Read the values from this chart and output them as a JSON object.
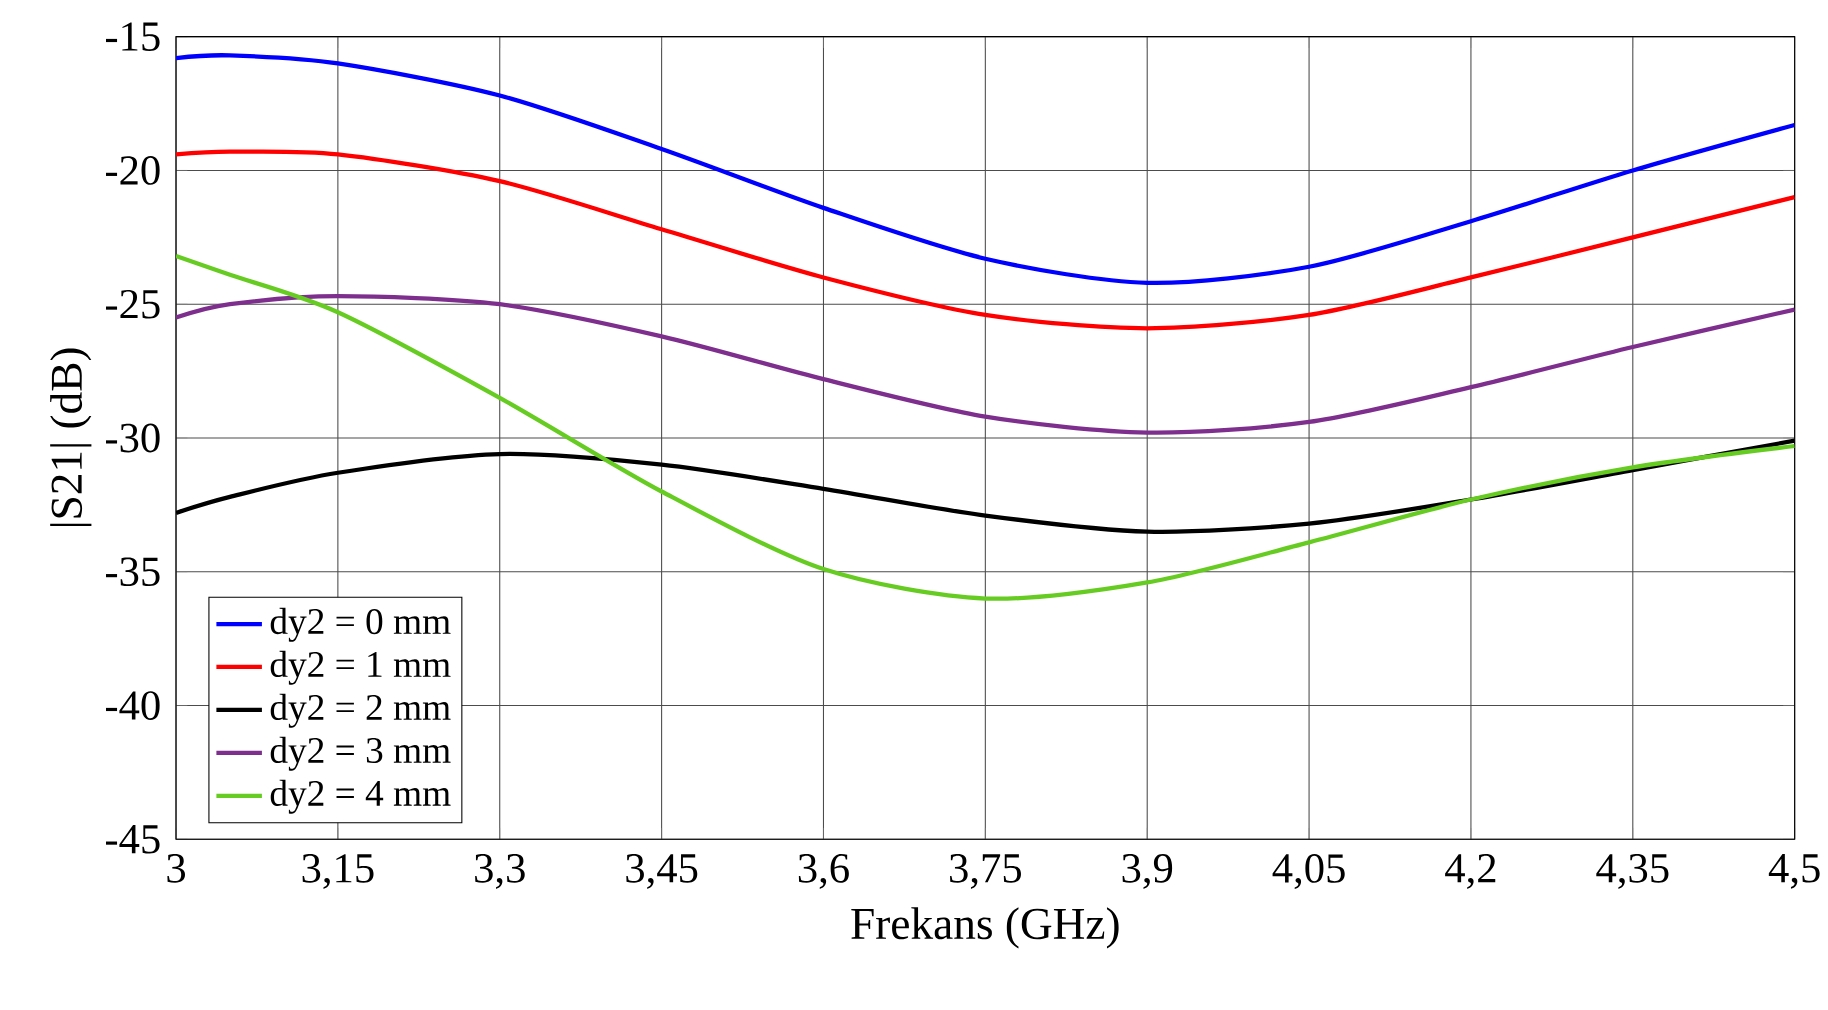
{
  "chart_data": {
    "type": "line",
    "xlabel": "Frekans (GHz)",
    "ylabel": "|S21| (dB)",
    "x": [
      3,
      3.05,
      3.15,
      3.3,
      3.45,
      3.6,
      3.75,
      3.9,
      4.05,
      4.2,
      4.35,
      4.5
    ],
    "series": [
      {
        "name": "dy2 = 0 mm",
        "color": "#0000ff",
        "values": [
          -15.8,
          -15.7,
          -16.0,
          -17.2,
          -19.2,
          -21.4,
          -23.3,
          -24.2,
          -23.6,
          -21.9,
          -20.0,
          -18.3
        ]
      },
      {
        "name": "dy2 = 1 mm",
        "color": "#ff0000",
        "values": [
          -19.4,
          -19.3,
          -19.4,
          -20.4,
          -22.2,
          -24.0,
          -25.4,
          -25.9,
          -25.4,
          -24.0,
          -22.5,
          -21.0
        ]
      },
      {
        "name": "dy2 = 2 mm",
        "color": "#000000",
        "values": [
          -32.8,
          -32.2,
          -31.3,
          -30.6,
          -31.0,
          -31.9,
          -32.9,
          -33.5,
          -33.2,
          -32.3,
          -31.2,
          -30.1
        ]
      },
      {
        "name": "dy2 = 3 mm",
        "color": "#7e2f8e",
        "values": [
          -25.5,
          -25.0,
          -24.7,
          -25.0,
          -26.2,
          -27.8,
          -29.2,
          -29.8,
          -29.4,
          -28.1,
          -26.6,
          -25.2
        ]
      },
      {
        "name": "dy2 = 4 mm",
        "color": "#66cc22",
        "values": [
          -23.2,
          -23.9,
          -25.3,
          -28.5,
          -32.0,
          -34.9,
          -36.0,
          -35.4,
          -33.9,
          -32.3,
          -31.1,
          -30.3
        ]
      }
    ],
    "xlim": [
      3,
      4.5
    ],
    "xticks": [
      3,
      {
        "value": 3.15,
        "label": "3,15"
      },
      {
        "value": 3.3,
        "label": "3,3"
      },
      {
        "value": 3.45,
        "label": "3,45"
      },
      {
        "value": 3.6,
        "label": "3,6"
      },
      {
        "value": 3.75,
        "label": "3,75"
      },
      {
        "value": 3.9,
        "label": "3,9"
      },
      {
        "value": 4.05,
        "label": "4,05"
      },
      {
        "value": 4.2,
        "label": "4,2"
      },
      {
        "value": 4.35,
        "label": "4,35"
      },
      {
        "value": 4.5,
        "label": "4,5"
      }
    ],
    "ylim": [
      -45,
      -15
    ],
    "yticks": [
      -45,
      -40,
      -35,
      -30,
      -25,
      -20,
      -15
    ],
    "grid": true,
    "legend": "bottom left",
    "marker": "none",
    "line_style": "solid"
  }
}
